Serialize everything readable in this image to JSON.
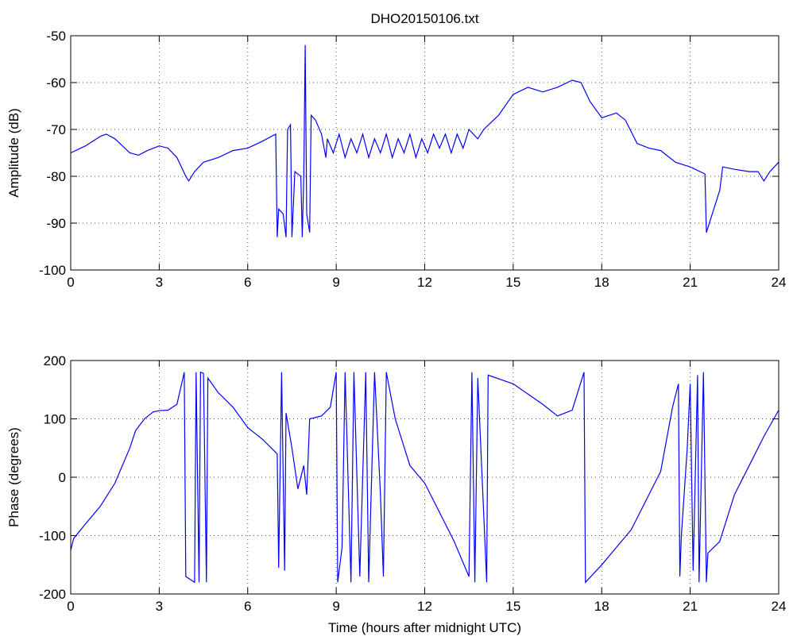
{
  "chart_data": [
    {
      "type": "line",
      "title": "DHO20150106.txt",
      "ylabel": "Amplitude (dB)",
      "color": "#0000ff",
      "grid": true,
      "xlim": [
        0,
        24
      ],
      "xticks": [
        0,
        3,
        6,
        9,
        12,
        15,
        18,
        21,
        24
      ],
      "ylim": [
        -100,
        -50
      ],
      "yticks": [
        -100,
        -90,
        -80,
        -70,
        -60,
        -50
      ],
      "x": [
        0,
        0.5,
        1,
        1.2,
        1.5,
        2,
        2.3,
        2.6,
        3,
        3.3,
        3.6,
        3.9,
        4.0,
        4.2,
        4.5,
        5,
        5.5,
        6,
        6.5,
        6.95,
        7.0,
        7.05,
        7.2,
        7.3,
        7.35,
        7.45,
        7.5,
        7.6,
        7.8,
        7.85,
        7.9,
        7.95,
        8.0,
        8.1,
        8.15,
        8.3,
        8.5,
        8.65,
        8.7,
        8.9,
        9.1,
        9.3,
        9.5,
        9.7,
        9.9,
        10.1,
        10.3,
        10.5,
        10.7,
        10.9,
        11.1,
        11.3,
        11.5,
        11.7,
        11.9,
        12.1,
        12.3,
        12.5,
        12.7,
        12.9,
        13.1,
        13.3,
        13.5,
        13.8,
        14,
        14.5,
        15,
        15.5,
        16,
        16.5,
        17,
        17.3,
        17.6,
        18,
        18.5,
        18.8,
        19.2,
        19.6,
        20,
        20.5,
        21,
        21.5,
        21.55,
        21.8,
        22,
        22.1,
        22.5,
        23,
        23.3,
        23.5,
        23.7,
        24
      ],
      "values": [
        -75,
        -73.5,
        -71.5,
        -71,
        -72,
        -75,
        -75.5,
        -74.5,
        -73.5,
        -74,
        -76,
        -80,
        -81,
        -79,
        -77,
        -76,
        -74.5,
        -74,
        -72.5,
        -71,
        -93,
        -87,
        -88,
        -93,
        -70,
        -69,
        -93,
        -79,
        -80,
        -93,
        -80,
        -52,
        -88,
        -92,
        -67,
        -68,
        -71,
        -76,
        -72,
        -75,
        -71,
        -76,
        -72,
        -75,
        -71,
        -76,
        -72,
        -75,
        -71,
        -76,
        -72,
        -75,
        -71,
        -76,
        -72,
        -75,
        -71,
        -74,
        -71,
        -75,
        -71,
        -74,
        -70,
        -72,
        -70,
        -67,
        -62.5,
        -61,
        -62,
        -61,
        -59.5,
        -60,
        -64,
        -67.5,
        -66.5,
        -68,
        -73,
        -74,
        -74.5,
        -77,
        -78,
        -79.5,
        -92,
        -87,
        -83,
        -78,
        -78.5,
        -79,
        -79,
        -81,
        -79,
        -77
      ]
    },
    {
      "type": "line",
      "xlabel": "Time (hours after midnight UTC)",
      "ylabel": "Phase (degrees)",
      "color": "#0000ff",
      "grid": true,
      "xlim": [
        0,
        24
      ],
      "xticks": [
        0,
        3,
        6,
        9,
        12,
        15,
        18,
        21,
        24
      ],
      "ylim": [
        -200,
        200
      ],
      "yticks": [
        -200,
        -100,
        0,
        100,
        200
      ],
      "x": [
        0,
        0.1,
        0.5,
        1,
        1.5,
        2,
        2.2,
        2.5,
        2.8,
        3,
        3.3,
        3.6,
        3.85,
        3.9,
        4.2,
        4.25,
        4.35,
        4.4,
        4.5,
        4.6,
        4.65,
        5,
        5.5,
        6,
        6.5,
        7,
        7.05,
        7.15,
        7.25,
        7.3,
        7.5,
        7.7,
        7.9,
        8,
        8.1,
        8.5,
        8.8,
        9,
        9.05,
        9.2,
        9.3,
        9.5,
        9.6,
        9.8,
        10,
        10.1,
        10.3,
        10.5,
        10.6,
        10.7,
        11,
        11.5,
        12,
        12.5,
        13,
        13.5,
        13.6,
        13.7,
        13.8,
        14.1,
        14.15,
        15,
        16,
        16.5,
        17,
        17.4,
        17.45,
        18,
        19,
        20,
        20.4,
        20.6,
        20.65,
        20.7,
        20.9,
        21,
        21.1,
        21.25,
        21.3,
        21.45,
        21.55,
        21.6,
        22,
        22.5,
        23,
        23.5,
        24
      ],
      "values": [
        -125,
        -105,
        -80,
        -50,
        -10,
        50,
        80,
        100,
        112,
        114,
        115,
        125,
        180,
        -170,
        -180,
        180,
        -180,
        180,
        178,
        -180,
        170,
        145,
        120,
        85,
        65,
        40,
        -155,
        180,
        -160,
        110,
        50,
        -20,
        20,
        -30,
        100,
        105,
        120,
        180,
        -180,
        -120,
        180,
        -180,
        180,
        -170,
        180,
        -180,
        180,
        -30,
        -170,
        180,
        100,
        20,
        -10,
        -60,
        -110,
        -170,
        180,
        -180,
        170,
        -180,
        175,
        160,
        125,
        105,
        115,
        180,
        -180,
        -150,
        -90,
        10,
        120,
        160,
        -170,
        -100,
        50,
        160,
        -160,
        175,
        -180,
        180,
        -180,
        -130,
        -110,
        -30,
        20,
        70,
        115
      ]
    }
  ]
}
